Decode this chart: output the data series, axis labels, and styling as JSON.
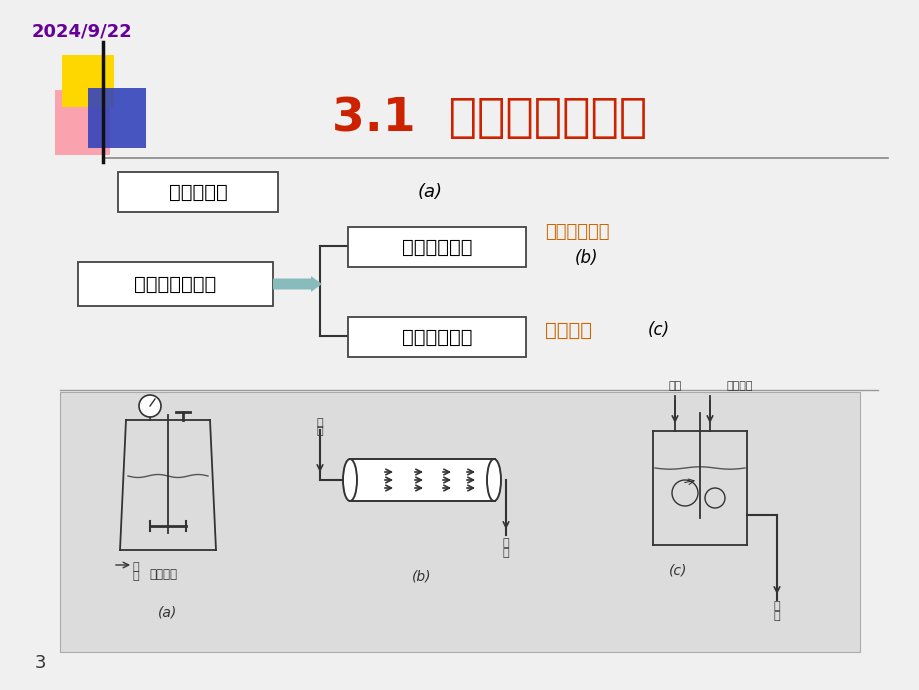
{
  "bg_color": "#f0f0f0",
  "date_text": "2024/9/22",
  "date_color": "#660099",
  "title": "3.1  理想反应器类型",
  "title_color": "#cc2200",
  "title_fontsize": 34,
  "slide_number": "3",
  "box1_text": "间歇反应器",
  "box1_label": "(a)",
  "box2_text": "连续流动反应器",
  "box3_text": "平推流反应器",
  "box3_note": "完全没有返混",
  "box3_label": "(b)",
  "box4_text": "全混流反应器",
  "box4_note": "返混极大",
  "box4_label": "(c)",
  "orange_color": "#cc6600",
  "line_color": "#404040",
  "box_edge_color": "#444444",
  "arrow_color": "#88BBBB",
  "brace_color": "#333333",
  "separator_color": "#888888",
  "diag_bg_color": "#dcdcdc"
}
